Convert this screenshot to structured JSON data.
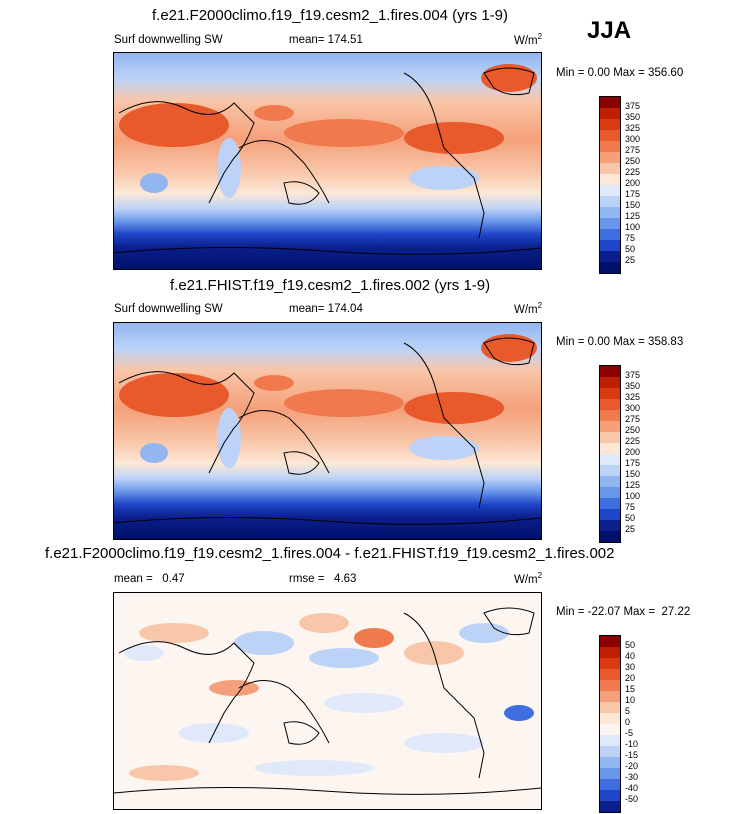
{
  "season": "JJA",
  "panels": [
    {
      "title": "f.e21.F2000climo.f19_f19.cesm2_1.fires.004 (yrs 1-9)",
      "left_label": "Surf downwelling SW",
      "center_label": "mean= 174.51",
      "units": "W/m",
      "units_sup": "2",
      "minmax": "Min =   0.00 Max = 356.60",
      "colorbar_labels": [
        "375",
        "350",
        "325",
        "300",
        "275",
        "250",
        "225",
        "200",
        "175",
        "150",
        "125",
        "100",
        "75",
        "50",
        "25"
      ]
    },
    {
      "title": "f.e21.FHIST.f19_f19.cesm2_1.fires.002 (yrs 1-9)",
      "left_label": "Surf downwelling SW",
      "center_label": "mean= 174.04",
      "units": "W/m",
      "units_sup": "2",
      "minmax": "Min =   0.00 Max = 358.83",
      "colorbar_labels": [
        "375",
        "350",
        "325",
        "300",
        "275",
        "250",
        "225",
        "200",
        "175",
        "150",
        "125",
        "100",
        "75",
        "50",
        "25"
      ]
    },
    {
      "title": "f.e21.F2000climo.f19_f19.cesm2_1.fires.004 - f.e21.FHIST.f19_f19.cesm2_1.fires.002",
      "left_label": "mean =   0.47",
      "center_label": "rmse =   4.63",
      "units": "W/m",
      "units_sup": "2",
      "minmax": "Min = -22.07 Max =  27.22",
      "colorbar_labels": [
        "50",
        "40",
        "30",
        "20",
        "15",
        "10",
        "5",
        "0",
        "-5",
        "-10",
        "-15",
        "-20",
        "-30",
        "-40",
        "-50"
      ]
    }
  ],
  "colors": {
    "abs_scale": [
      "#8b0000",
      "#bf1e00",
      "#d93a10",
      "#e8592b",
      "#f07a4d",
      "#f5a07a",
      "#f8c6a8",
      "#fde8d8",
      "#dfe9fb",
      "#bcd3f7",
      "#92b6f0",
      "#6a97ea",
      "#3f6ee0",
      "#1f45c8",
      "#0a1f8c",
      "#00116b"
    ],
    "diff_scale": [
      "#8b0000",
      "#bf1e00",
      "#d93a10",
      "#e8592b",
      "#f07a4d",
      "#f5a07a",
      "#f8c6a8",
      "#fde8d8",
      "#fdf5ef",
      "#dfe9fb",
      "#bcd3f7",
      "#92b6f0",
      "#6a97ea",
      "#3f6ee0",
      "#1f45c8",
      "#0a1f8c"
    ]
  }
}
